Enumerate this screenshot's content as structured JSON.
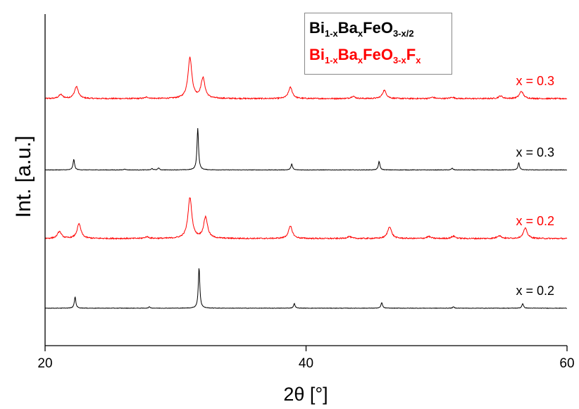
{
  "chart_data": {
    "type": "line",
    "xlabel": "2θ [°]",
    "ylabel": "Int. [a.u.]",
    "xlim": [
      20,
      60
    ],
    "x_ticks": [
      "20",
      "40",
      "60"
    ],
    "y_ticks_labeled": false,
    "grid": false,
    "legend": {
      "placement": "top-right",
      "entries": [
        {
          "color": "#000000",
          "base": "Bi",
          "s1": "1-x",
          "m1": "Ba",
          "s2": "x",
          "m2": "FeO",
          "s3": "3-x/2",
          "m3": "",
          "s4": ""
        },
        {
          "color": "#ff0000",
          "base": "Bi",
          "s1": "1-x",
          "m1": "Ba",
          "s2": "x",
          "m2": "FeO",
          "s3": "3-x",
          "m3": "F",
          "s4": "x"
        }
      ]
    },
    "series": [
      {
        "legend_index": 1,
        "color": "#ff0000",
        "label": "x = 0.3",
        "baseline": 0.745,
        "peak_width": 0.18,
        "peaks": [
          [
            21.2,
            0.012
          ],
          [
            22.4,
            0.036
          ],
          [
            27.8,
            0.004
          ],
          [
            31.1,
            0.123
          ],
          [
            32.1,
            0.061
          ],
          [
            38.8,
            0.034
          ],
          [
            43.6,
            0.007
          ],
          [
            46.0,
            0.025
          ],
          [
            49.7,
            0.004
          ],
          [
            51.2,
            0.004
          ],
          [
            54.9,
            0.008
          ],
          [
            56.5,
            0.022
          ]
        ]
      },
      {
        "legend_index": 0,
        "color": "#000000",
        "label": "x = 0.3",
        "baseline": 0.53,
        "peak_width": 0.07,
        "peaks": [
          [
            22.2,
            0.032
          ],
          [
            26.1,
            0.003
          ],
          [
            28.2,
            0.004
          ],
          [
            28.7,
            0.006
          ],
          [
            31.7,
            0.126
          ],
          [
            38.9,
            0.018
          ],
          [
            45.6,
            0.026
          ],
          [
            51.2,
            0.005
          ],
          [
            56.3,
            0.022
          ]
        ]
      },
      {
        "legend_index": 1,
        "color": "#ff0000",
        "label": "x = 0.2",
        "baseline": 0.323,
        "peak_width": 0.18,
        "peaks": [
          [
            21.1,
            0.021
          ],
          [
            22.6,
            0.044
          ],
          [
            27.8,
            0.005
          ],
          [
            31.1,
            0.123
          ],
          [
            32.3,
            0.064
          ],
          [
            38.8,
            0.037
          ],
          [
            43.3,
            0.006
          ],
          [
            46.4,
            0.036
          ],
          [
            49.4,
            0.006
          ],
          [
            51.3,
            0.007
          ],
          [
            54.8,
            0.009
          ],
          [
            56.8,
            0.031
          ]
        ]
      },
      {
        "legend_index": 0,
        "color": "#000000",
        "label": "x = 0.2",
        "baseline": 0.113,
        "peak_width": 0.07,
        "peaks": [
          [
            22.3,
            0.034
          ],
          [
            28.0,
            0.004
          ],
          [
            31.8,
            0.122
          ],
          [
            39.1,
            0.014
          ],
          [
            45.8,
            0.017
          ],
          [
            51.3,
            0.004
          ],
          [
            56.6,
            0.014
          ]
        ]
      }
    ]
  }
}
